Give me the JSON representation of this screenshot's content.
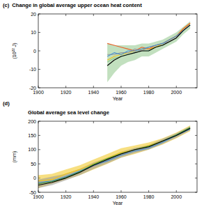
{
  "chart_data": [
    {
      "type": "line",
      "label": "(c)",
      "title": "Change in global average upper ocean heat content",
      "xlabel": "Year",
      "ylabel": "(10²² J)",
      "x": [
        1950,
        1955,
        1960,
        1965,
        1970,
        1975,
        1980,
        1985,
        1990,
        1995,
        2000,
        2005,
        2010
      ],
      "xlim": [
        1900,
        2015
      ],
      "xticks": [
        1900,
        1920,
        1940,
        1960,
        1980,
        2000
      ],
      "ylim": [
        -20,
        20
      ],
      "yticks": [
        -20,
        -10,
        0,
        10,
        20
      ],
      "series": [
        {
          "color": "#8fc78a",
          "values": [
            -6,
            -4,
            -3,
            -2,
            -1,
            0,
            0,
            2,
            3,
            5,
            7,
            11,
            14
          ],
          "lower": [
            -17,
            -12,
            -8,
            -6,
            -5,
            -3,
            -3,
            -1,
            1,
            3,
            5,
            9,
            12
          ],
          "upper": [
            4,
            3,
            3,
            3,
            3,
            4,
            4,
            5,
            6,
            8,
            10,
            13,
            16
          ]
        },
        {
          "color": "#f0c419",
          "values": [
            -5,
            -3,
            -2,
            -1,
            0,
            1,
            1,
            2,
            4,
            6,
            8,
            12,
            15
          ]
        },
        {
          "color": "#e8622a",
          "values": [
            4,
            3,
            2,
            1,
            0,
            2,
            1,
            3,
            4,
            6,
            8,
            12,
            15
          ]
        },
        {
          "color": "#999999",
          "values": [
            -2,
            -2,
            -1,
            -1,
            1,
            0,
            2,
            3,
            4,
            5,
            7,
            11,
            14
          ]
        },
        {
          "color": "#4a90d0",
          "values": [
            -3,
            -1,
            -2,
            0,
            0,
            1,
            2,
            3,
            4,
            6,
            8,
            11,
            14
          ]
        },
        {
          "color": "#000000",
          "values": [
            -8,
            -5,
            -3,
            -2,
            -1,
            0,
            0,
            2,
            3,
            5,
            7,
            11,
            14
          ]
        }
      ]
    },
    {
      "type": "line",
      "label": "(d)",
      "title": "Global average sea level change",
      "xlabel": "Year",
      "ylabel": "(mm)",
      "x": [
        1900,
        1910,
        1920,
        1930,
        1940,
        1950,
        1960,
        1970,
        1980,
        1990,
        2000,
        2010
      ],
      "xlim": [
        1900,
        2015
      ],
      "xticks": [
        1900,
        1920,
        1940,
        1960,
        1980,
        2000
      ],
      "ylim": [
        -50,
        200
      ],
      "yticks": [
        -50,
        0,
        50,
        100,
        150,
        200
      ],
      "series": [
        {
          "color": "#f0c419",
          "values": [
            -10,
            -5,
            15,
            30,
            50,
            70,
            90,
            100,
            115,
            130,
            150,
            175
          ],
          "lower": [
            -35,
            -20,
            -5,
            10,
            30,
            50,
            72,
            85,
            100,
            118,
            140,
            165
          ],
          "upper": [
            10,
            15,
            30,
            45,
            65,
            85,
            105,
            115,
            125,
            140,
            160,
            185
          ]
        },
        {
          "color": "#999999",
          "values": [
            -20,
            -10,
            5,
            22,
            42,
            62,
            82,
            98,
            108,
            128,
            150,
            175
          ],
          "lower": [
            -35,
            -25,
            -8,
            10,
            32,
            52,
            72,
            88,
            100,
            120,
            142,
            168
          ],
          "upper": [
            -5,
            5,
            15,
            32,
            55,
            72,
            92,
            106,
            116,
            138,
            158,
            182
          ]
        },
        {
          "color": "#4a90d0",
          "values": [
            -15,
            -10,
            5,
            25,
            45,
            60,
            80,
            95,
            105,
            125,
            150,
            172
          ]
        },
        {
          "color": "#3a9a3a",
          "values": [
            -20,
            -12,
            2,
            22,
            48,
            68,
            86,
            100,
            112,
            130,
            152,
            178
          ]
        },
        {
          "color": "#000000",
          "values": [
            -25,
            -15,
            0,
            20,
            45,
            65,
            85,
            100,
            110,
            130,
            150,
            175
          ]
        }
      ]
    }
  ]
}
